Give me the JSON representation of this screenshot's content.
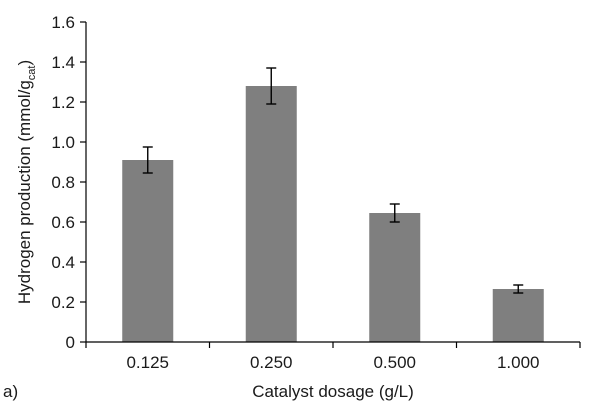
{
  "panel_label": "a)",
  "chart_data": {
    "type": "bar",
    "title": "",
    "xlabel": "Catalyst dosage (g/L)",
    "ylabel": {
      "main": "Hydrogen production (mmol/g",
      "subscript": "cat",
      "suffix": ")"
    },
    "categories": [
      "0.125",
      "0.250",
      "0.500",
      "1.000"
    ],
    "values": [
      0.91,
      1.28,
      0.645,
      0.265
    ],
    "errors": [
      0.065,
      0.09,
      0.045,
      0.02
    ],
    "ylim": [
      0,
      1.6
    ],
    "yticks": [
      "0",
      "0.2",
      "0.4",
      "0.6",
      "0.8",
      "1.0",
      "1.2",
      "1.4",
      "1.6"
    ],
    "grid": false,
    "legend": "none",
    "bar_color": "#7f7f7f",
    "error_bar_color": "#000000"
  }
}
